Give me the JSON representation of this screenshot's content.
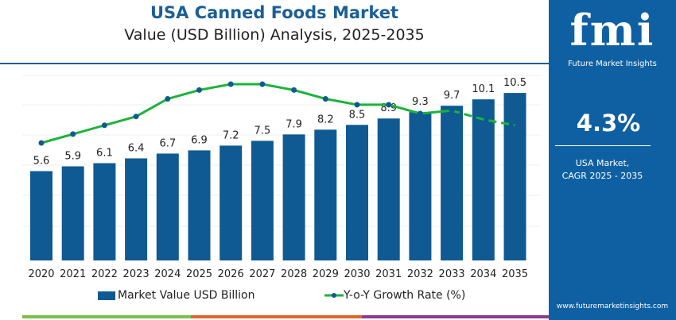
{
  "header": {
    "title": "USA Canned Foods Market",
    "subtitle": "Value (USD Billion) Analysis, 2025-2035"
  },
  "panel": {
    "logo_text": "fmi",
    "logo_subtitle": "Future Market Insights",
    "cagr_value": "4.3%",
    "cagr_label_1": "USA Market,",
    "cagr_label_2": "CAGR 2025 - 2035",
    "website": "www.futuremarketinsights.com"
  },
  "colors": {
    "bar": "#0f5a92",
    "line": "#1db33a",
    "marker": "#0f5a92",
    "panel": "#0f60a3",
    "title": "#1b5f96"
  },
  "chart_data": {
    "type": "bar+line",
    "categories": [
      "2020",
      "2021",
      "2022",
      "2023",
      "2024",
      "2025",
      "2026",
      "2027",
      "2028",
      "2029",
      "2030",
      "2031",
      "2032",
      "2033",
      "2034",
      "2035"
    ],
    "series": [
      {
        "name": "Market Value USD Billion",
        "type": "bar",
        "values": [
          5.6,
          5.9,
          6.1,
          6.4,
          6.7,
          6.9,
          7.2,
          7.5,
          7.9,
          8.2,
          8.5,
          8.9,
          9.3,
          9.7,
          10.1,
          10.5
        ]
      },
      {
        "name": "Y-o-Y Growth Rate (%)",
        "type": "line",
        "values_estimated": [
          3.4,
          3.7,
          4.0,
          4.3,
          4.9,
          5.2,
          5.4,
          5.4,
          5.2,
          4.9,
          4.7,
          4.7,
          4.4,
          4.5,
          4.2,
          4.0
        ],
        "forecast_dashed_from": "2033"
      }
    ],
    "ylim": [
      0,
      11.6
    ],
    "grid": true,
    "legend_placement": "bottom"
  }
}
